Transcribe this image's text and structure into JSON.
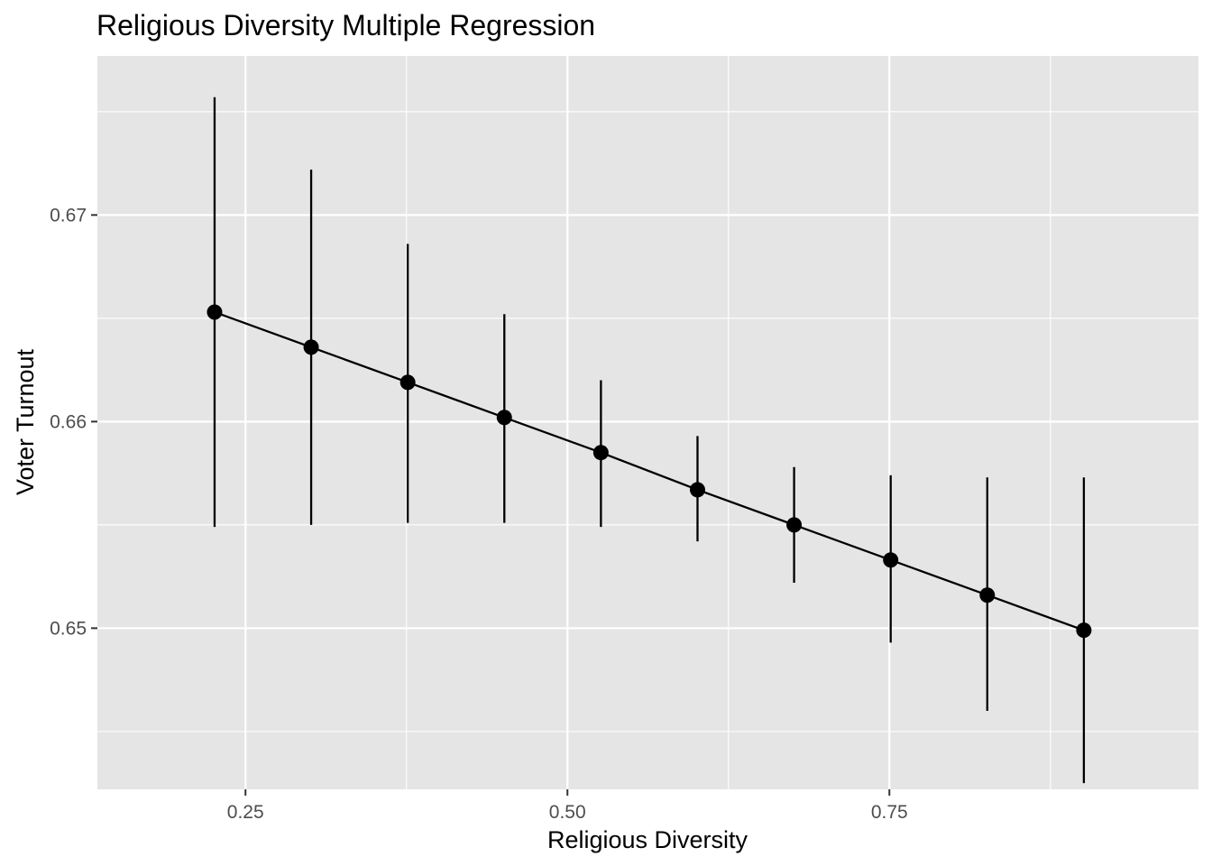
{
  "chart_data": {
    "type": "line",
    "title": "Religious Diversity Multiple Regression",
    "xlabel": "Religious Diversity",
    "ylabel": "Voter Turnout",
    "xlim": [
      0.135,
      0.99
    ],
    "ylim": [
      0.6422,
      0.6777
    ],
    "x_ticks": [
      0.25,
      0.5,
      0.75
    ],
    "x_tick_labels": [
      "0.25",
      "0.50",
      "0.75"
    ],
    "y_ticks": [
      0.65,
      0.66,
      0.67
    ],
    "y_tick_labels": [
      "0.65",
      "0.66",
      "0.67"
    ],
    "grid": true,
    "series": [
      {
        "x": [
          0.226,
          0.301,
          0.376,
          0.451,
          0.526,
          0.601,
          0.676,
          0.751,
          0.826,
          0.901
        ],
        "y": [
          0.6653,
          0.6636,
          0.6619,
          0.6602,
          0.6585,
          0.6567,
          0.655,
          0.6533,
          0.6516,
          0.6499
        ],
        "lower": [
          0.6549,
          0.655,
          0.6551,
          0.6551,
          0.6549,
          0.6542,
          0.6522,
          0.6493,
          0.646,
          0.6425
        ],
        "upper": [
          0.6757,
          0.6722,
          0.6686,
          0.6652,
          0.662,
          0.6593,
          0.6578,
          0.6574,
          0.6573,
          0.6573
        ]
      }
    ]
  }
}
